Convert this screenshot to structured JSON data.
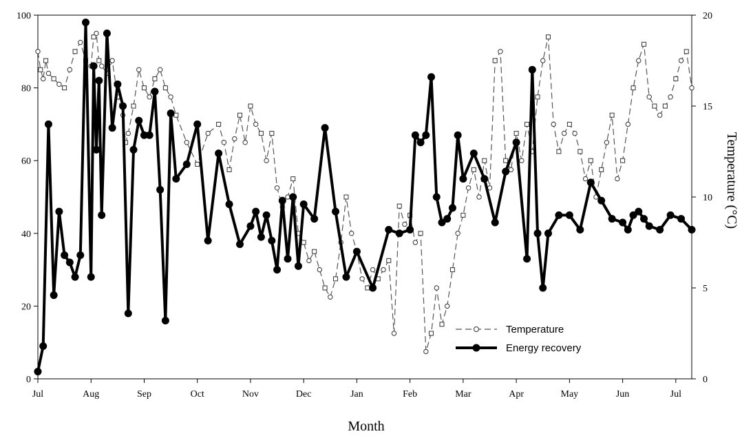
{
  "chart_data": {
    "type": "line",
    "title": "",
    "xlabel": "Month",
    "ylabel_left": "",
    "ylabel_right": "Temperature (°C)",
    "x_ticks": [
      "Jul",
      "Aug",
      "Sep",
      "Oct",
      "Nov",
      "Dec",
      "Jan",
      "Feb",
      "Mar",
      "Apr",
      "May",
      "Jun",
      "Jul"
    ],
    "ylim_left": [
      0,
      100
    ],
    "yticks_left": [
      "0",
      "20",
      "40",
      "60",
      "80",
      "100"
    ],
    "ylim_right": [
      0,
      20
    ],
    "yticks_right": [
      "0",
      "5",
      "10",
      "15",
      "20"
    ],
    "legend_placement": "lower-right",
    "grid": false,
    "series": [
      {
        "name": "Temperature",
        "axis": "right",
        "style": "dashed gray line with open circle and square markers",
        "x": [
          0.0,
          0.05,
          0.1,
          0.15,
          0.2,
          0.3,
          0.4,
          0.5,
          0.6,
          0.7,
          0.8,
          0.9,
          1.0,
          1.05,
          1.1,
          1.15,
          1.2,
          1.3,
          1.4,
          1.5,
          1.6,
          1.65,
          1.7,
          1.8,
          1.9,
          2.0,
          2.1,
          2.2,
          2.3,
          2.4,
          2.5,
          2.6,
          2.8,
          3.0,
          3.2,
          3.4,
          3.5,
          3.6,
          3.7,
          3.8,
          3.9,
          4.0,
          4.1,
          4.2,
          4.3,
          4.4,
          4.5,
          4.6,
          4.7,
          4.8,
          4.9,
          5.0,
          5.1,
          5.2,
          5.3,
          5.4,
          5.5,
          5.6,
          5.7,
          5.8,
          5.9,
          6.0,
          6.1,
          6.2,
          6.3,
          6.4,
          6.5,
          6.6,
          6.7,
          6.8,
          6.9,
          7.0,
          7.1,
          7.2,
          7.3,
          7.4,
          7.5,
          7.6,
          7.7,
          7.8,
          7.9,
          8.0,
          8.1,
          8.2,
          8.3,
          8.4,
          8.5,
          8.6,
          8.7,
          8.8,
          8.9,
          9.0,
          9.1,
          9.2,
          9.3,
          9.4,
          9.5,
          9.6,
          9.7,
          9.8,
          9.9,
          10.0,
          10.1,
          10.2,
          10.3,
          10.4,
          10.5,
          10.6,
          10.7,
          10.8,
          10.9,
          11.0,
          11.1,
          11.2,
          11.3,
          11.4,
          11.5,
          11.6,
          11.7,
          11.8,
          11.9,
          12.0,
          12.1,
          12.2,
          12.3
        ],
        "values": [
          18.0,
          17.0,
          16.5,
          17.5,
          16.8,
          16.5,
          16.2,
          16.0,
          17.0,
          18.0,
          18.5,
          17.5,
          17.2,
          18.8,
          19.0,
          17.5,
          17.2,
          16.8,
          17.5,
          15.5,
          14.5,
          13.0,
          13.5,
          15.0,
          17.0,
          16.0,
          15.5,
          16.5,
          17.0,
          16.0,
          15.5,
          14.5,
          13.0,
          11.8,
          13.5,
          14.0,
          13.0,
          11.5,
          13.2,
          14.5,
          13.0,
          15.0,
          14.0,
          13.5,
          12.0,
          13.5,
          10.5,
          9.5,
          10.0,
          11.0,
          8.0,
          7.5,
          6.5,
          7.0,
          6.0,
          5.0,
          4.5,
          5.5,
          7.5,
          10.0,
          8.0,
          7.0,
          5.5,
          5.0,
          6.0,
          5.5,
          6.0,
          6.5,
          2.5,
          9.5,
          8.5,
          9.0,
          7.5,
          8.0,
          1.5,
          2.5,
          5.0,
          3.0,
          4.0,
          6.0,
          8.0,
          9.0,
          10.5,
          11.5,
          10.0,
          12.0,
          10.5,
          17.5,
          18.0,
          12.0,
          11.5,
          13.5,
          12.0,
          14.0,
          12.5,
          15.5,
          17.5,
          18.8,
          14.0,
          12.5,
          13.5,
          14.0,
          13.5,
          12.5,
          11.0,
          12.0,
          10.0,
          11.5,
          13.0,
          14.5,
          11.0,
          12.0,
          14.0,
          16.0,
          17.5,
          18.4,
          15.5,
          15.0,
          14.5,
          15.0,
          15.5,
          16.5,
          17.5,
          18.0,
          16.0
        ]
      },
      {
        "name": "Energy recovery",
        "axis": "left",
        "style": "thick black line with filled circle markers",
        "x": [
          0.0,
          0.1,
          0.2,
          0.3,
          0.4,
          0.5,
          0.6,
          0.7,
          0.8,
          0.9,
          1.0,
          1.05,
          1.1,
          1.15,
          1.2,
          1.3,
          1.4,
          1.5,
          1.6,
          1.7,
          1.8,
          1.9,
          2.0,
          2.1,
          2.2,
          2.3,
          2.4,
          2.5,
          2.6,
          2.8,
          3.0,
          3.2,
          3.4,
          3.6,
          3.8,
          4.0,
          4.1,
          4.2,
          4.3,
          4.4,
          4.5,
          4.6,
          4.7,
          4.8,
          4.9,
          5.0,
          5.2,
          5.4,
          5.6,
          5.8,
          6.0,
          6.3,
          6.6,
          6.8,
          7.0,
          7.1,
          7.2,
          7.3,
          7.4,
          7.5,
          7.6,
          7.7,
          7.8,
          7.9,
          8.0,
          8.2,
          8.4,
          8.6,
          8.8,
          9.0,
          9.2,
          9.3,
          9.4,
          9.5,
          9.6,
          9.8,
          10.0,
          10.2,
          10.4,
          10.6,
          10.8,
          11.0,
          11.1,
          11.2,
          11.3,
          11.4,
          11.5,
          11.7,
          11.9,
          12.1,
          12.3
        ],
        "values": [
          2,
          9,
          70,
          23,
          46,
          34,
          32,
          28,
          34,
          98,
          28,
          86,
          63,
          82,
          45,
          95,
          69,
          81,
          75,
          18,
          63,
          71,
          67,
          67,
          79,
          52,
          16,
          73,
          55,
          59,
          70,
          38,
          62,
          48,
          37,
          42,
          46,
          39,
          45,
          38,
          30,
          49,
          33,
          50,
          31,
          48,
          44,
          69,
          46,
          28,
          35,
          25,
          41,
          40,
          41,
          67,
          65,
          67,
          83,
          50,
          43,
          44,
          47,
          67,
          55,
          62,
          55,
          43,
          57,
          65,
          33,
          85,
          40,
          25,
          40,
          45,
          45,
          41,
          54,
          49,
          44,
          43,
          41,
          45,
          46,
          44,
          42,
          41,
          45,
          44,
          41
        ]
      }
    ]
  }
}
